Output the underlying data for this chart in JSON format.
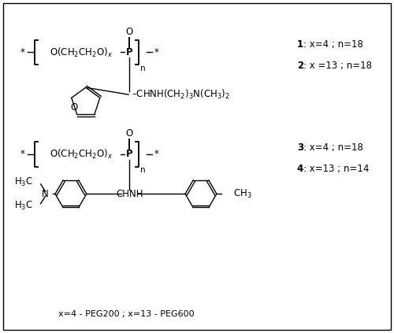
{
  "background_color": "#ffffff",
  "fig_width": 5.0,
  "fig_height": 4.23,
  "dpi": 100,
  "text_color": "#000000",
  "fontsize_main": 8.5,
  "fontsize_label": 8.5,
  "fontsize_footer": 8.0,
  "labels": {
    "c1_num": "1",
    "c1_params": ": x=4 ; n=18",
    "c2_num": "2",
    "c2_params": ": x =13 ; n=18",
    "c3_num": "3",
    "c3_params": ": x=4 ; n=18",
    "c4_num": "4",
    "c4_params": ": x=13 ; n=14",
    "footer": "x=4 - PEG200 ; x=13 - PEG600"
  }
}
